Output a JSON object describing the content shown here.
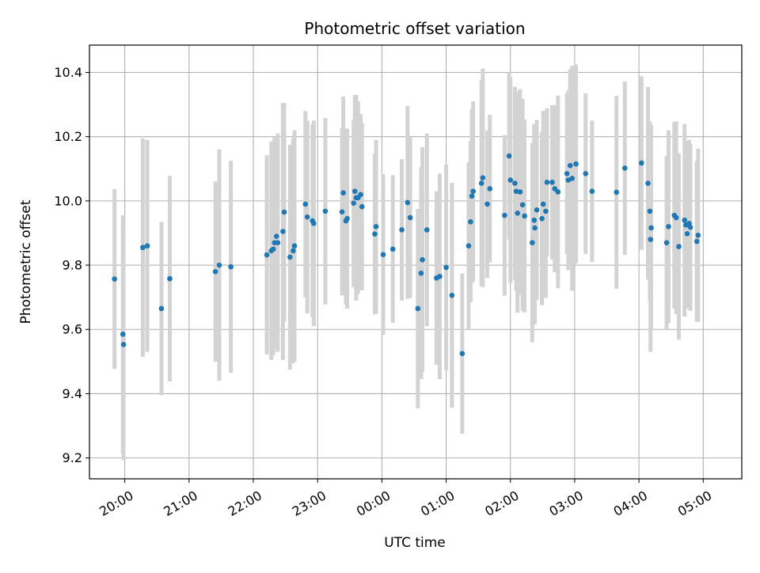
{
  "chart_data": {
    "type": "scatter",
    "title": "Photometric offset variation",
    "xlabel": "UTC time",
    "ylabel": "Photometric offset",
    "x_axis": "time (hours after 19:00 UTC)",
    "xlim": [
      0.45,
      10.6
    ],
    "ylim": [
      9.135,
      10.485
    ],
    "grid": true,
    "colors": {
      "point": "#1f77b4",
      "errorbar": "#d3d3d3",
      "grid": "#b0b0b0"
    },
    "x_ticks": [
      {
        "value": 1,
        "label": "20:00"
      },
      {
        "value": 2,
        "label": "21:00"
      },
      {
        "value": 3,
        "label": "22:00"
      },
      {
        "value": 4,
        "label": "23:00"
      },
      {
        "value": 5,
        "label": "00:00"
      },
      {
        "value": 6,
        "label": "01:00"
      },
      {
        "value": 7,
        "label": "02:00"
      },
      {
        "value": 8,
        "label": "03:00"
      },
      {
        "value": 9,
        "label": "04:00"
      },
      {
        "value": 10,
        "label": "05:00"
      }
    ],
    "y_ticks": [
      {
        "value": 9.2,
        "label": "9.2"
      },
      {
        "value": 9.4,
        "label": "9.4"
      },
      {
        "value": 9.6,
        "label": "9.6"
      },
      {
        "value": 9.8,
        "label": "9.8"
      },
      {
        "value": 10.0,
        "label": "10.0"
      },
      {
        "value": 10.2,
        "label": "10.2"
      },
      {
        "value": 10.4,
        "label": "10.4"
      }
    ],
    "points": [
      {
        "x": 0.84,
        "y": 9.757,
        "err": 0.28
      },
      {
        "x": 0.97,
        "y": 9.585,
        "err": 0.37
      },
      {
        "x": 0.98,
        "y": 9.553,
        "err": 0.36
      },
      {
        "x": 1.28,
        "y": 9.855,
        "err": 0.34
      },
      {
        "x": 1.35,
        "y": 9.86,
        "err": 0.33
      },
      {
        "x": 1.57,
        "y": 9.665,
        "err": 0.27
      },
      {
        "x": 1.7,
        "y": 9.758,
        "err": 0.32
      },
      {
        "x": 2.41,
        "y": 9.78,
        "err": 0.28
      },
      {
        "x": 2.47,
        "y": 9.8,
        "err": 0.36
      },
      {
        "x": 2.65,
        "y": 9.795,
        "err": 0.33
      },
      {
        "x": 3.21,
        "y": 9.832,
        "err": 0.31
      },
      {
        "x": 3.28,
        "y": 9.845,
        "err": 0.34
      },
      {
        "x": 3.31,
        "y": 9.85,
        "err": 0.33
      },
      {
        "x": 3.33,
        "y": 9.87,
        "err": 0.33
      },
      {
        "x": 3.36,
        "y": 9.89,
        "err": 0.3
      },
      {
        "x": 3.38,
        "y": 9.87,
        "err": 0.34
      },
      {
        "x": 3.46,
        "y": 9.905,
        "err": 0.4
      },
      {
        "x": 3.48,
        "y": 9.965,
        "err": 0.34
      },
      {
        "x": 3.57,
        "y": 9.825,
        "err": 0.35
      },
      {
        "x": 3.62,
        "y": 9.845,
        "err": 0.35
      },
      {
        "x": 3.64,
        "y": 9.86,
        "err": 0.36
      },
      {
        "x": 3.81,
        "y": 9.99,
        "err": 0.29
      },
      {
        "x": 3.84,
        "y": 9.95,
        "err": 0.3
      },
      {
        "x": 3.92,
        "y": 9.938,
        "err": 0.3
      },
      {
        "x": 3.94,
        "y": 9.93,
        "err": 0.32
      },
      {
        "x": 4.12,
        "y": 9.968,
        "err": 0.29
      },
      {
        "x": 4.38,
        "y": 9.966,
        "err": 0.26
      },
      {
        "x": 4.4,
        "y": 10.025,
        "err": 0.3
      },
      {
        "x": 4.44,
        "y": 9.938,
        "err": 0.26
      },
      {
        "x": 4.46,
        "y": 9.945,
        "err": 0.28
      },
      {
        "x": 4.56,
        "y": 9.993,
        "err": 0.26
      },
      {
        "x": 4.58,
        "y": 10.03,
        "err": 0.3
      },
      {
        "x": 4.6,
        "y": 10.01,
        "err": 0.32
      },
      {
        "x": 4.63,
        "y": 10.01,
        "err": 0.3
      },
      {
        "x": 4.67,
        "y": 10.02,
        "err": 0.25
      },
      {
        "x": 4.69,
        "y": 9.982,
        "err": 0.26
      },
      {
        "x": 4.89,
        "y": 9.897,
        "err": 0.25
      },
      {
        "x": 4.91,
        "y": 9.92,
        "err": 0.27
      },
      {
        "x": 5.02,
        "y": 9.833,
        "err": 0.25
      },
      {
        "x": 5.17,
        "y": 9.85,
        "err": 0.23
      },
      {
        "x": 5.31,
        "y": 9.91,
        "err": 0.22
      },
      {
        "x": 5.4,
        "y": 9.995,
        "err": 0.3
      },
      {
        "x": 5.44,
        "y": 9.948,
        "err": 0.25
      },
      {
        "x": 5.56,
        "y": 9.665,
        "err": 0.31
      },
      {
        "x": 5.61,
        "y": 9.775,
        "err": 0.33
      },
      {
        "x": 5.63,
        "y": 9.817,
        "err": 0.35
      },
      {
        "x": 5.7,
        "y": 9.91,
        "err": 0.3
      },
      {
        "x": 5.85,
        "y": 9.76,
        "err": 0.27
      },
      {
        "x": 5.9,
        "y": 9.765,
        "err": 0.32
      },
      {
        "x": 6.0,
        "y": 9.793,
        "err": 0.32
      },
      {
        "x": 6.09,
        "y": 9.706,
        "err": 0.35
      },
      {
        "x": 6.25,
        "y": 9.525,
        "err": 0.25
      },
      {
        "x": 6.35,
        "y": 9.86,
        "err": 0.26
      },
      {
        "x": 6.38,
        "y": 9.935,
        "err": 0.25
      },
      {
        "x": 6.4,
        "y": 10.015,
        "err": 0.27
      },
      {
        "x": 6.42,
        "y": 10.03,
        "err": 0.28
      },
      {
        "x": 6.55,
        "y": 10.055,
        "err": 0.32
      },
      {
        "x": 6.57,
        "y": 10.072,
        "err": 0.34
      },
      {
        "x": 6.64,
        "y": 9.99,
        "err": 0.23
      },
      {
        "x": 6.68,
        "y": 10.038,
        "err": 0.23
      },
      {
        "x": 6.91,
        "y": 9.955,
        "err": 0.25
      },
      {
        "x": 6.98,
        "y": 10.14,
        "err": 0.26
      },
      {
        "x": 7.0,
        "y": 10.065,
        "err": 0.32
      },
      {
        "x": 7.07,
        "y": 10.055,
        "err": 0.3
      },
      {
        "x": 7.09,
        "y": 10.03,
        "err": 0.31
      },
      {
        "x": 7.11,
        "y": 9.962,
        "err": 0.31
      },
      {
        "x": 7.15,
        "y": 10.028,
        "err": 0.32
      },
      {
        "x": 7.19,
        "y": 9.988,
        "err": 0.33
      },
      {
        "x": 7.22,
        "y": 9.953,
        "err": 0.3
      },
      {
        "x": 7.34,
        "y": 9.87,
        "err": 0.31
      },
      {
        "x": 7.37,
        "y": 9.94,
        "err": 0.3
      },
      {
        "x": 7.38,
        "y": 9.916,
        "err": 0.3
      },
      {
        "x": 7.41,
        "y": 9.972,
        "err": 0.28
      },
      {
        "x": 7.49,
        "y": 9.945,
        "err": 0.27
      },
      {
        "x": 7.51,
        "y": 9.99,
        "err": 0.29
      },
      {
        "x": 7.55,
        "y": 9.968,
        "err": 0.27
      },
      {
        "x": 7.57,
        "y": 10.058,
        "err": 0.23
      },
      {
        "x": 7.65,
        "y": 10.058,
        "err": 0.24
      },
      {
        "x": 7.69,
        "y": 10.038,
        "err": 0.26
      },
      {
        "x": 7.74,
        "y": 10.028,
        "err": 0.3
      },
      {
        "x": 7.88,
        "y": 10.085,
        "err": 0.25
      },
      {
        "x": 7.9,
        "y": 10.065,
        "err": 0.28
      },
      {
        "x": 7.93,
        "y": 10.11,
        "err": 0.3
      },
      {
        "x": 7.96,
        "y": 10.07,
        "err": 0.35
      },
      {
        "x": 8.02,
        "y": 10.115,
        "err": 0.31
      },
      {
        "x": 8.17,
        "y": 10.085,
        "err": 0.25
      },
      {
        "x": 8.27,
        "y": 10.03,
        "err": 0.22
      },
      {
        "x": 8.65,
        "y": 10.027,
        "err": 0.3
      },
      {
        "x": 8.78,
        "y": 10.102,
        "err": 0.27
      },
      {
        "x": 9.04,
        "y": 10.118,
        "err": 0.27
      },
      {
        "x": 9.14,
        "y": 10.055,
        "err": 0.3
      },
      {
        "x": 9.17,
        "y": 9.968,
        "err": 0.28
      },
      {
        "x": 9.18,
        "y": 9.88,
        "err": 0.35
      },
      {
        "x": 9.19,
        "y": 9.916,
        "err": 0.32
      },
      {
        "x": 9.43,
        "y": 9.87,
        "err": 0.27
      },
      {
        "x": 9.46,
        "y": 9.92,
        "err": 0.3
      },
      {
        "x": 9.55,
        "y": 9.955,
        "err": 0.29
      },
      {
        "x": 9.58,
        "y": 9.948,
        "err": 0.3
      },
      {
        "x": 9.62,
        "y": 9.858,
        "err": 0.29
      },
      {
        "x": 9.71,
        "y": 9.94,
        "err": 0.3
      },
      {
        "x": 9.73,
        "y": 9.925,
        "err": 0.26
      },
      {
        "x": 9.75,
        "y": 9.898,
        "err": 0.23
      },
      {
        "x": 9.78,
        "y": 9.93,
        "err": 0.26
      },
      {
        "x": 9.8,
        "y": 9.918,
        "err": 0.26
      },
      {
        "x": 9.9,
        "y": 9.874,
        "err": 0.25
      },
      {
        "x": 9.92,
        "y": 9.893,
        "err": 0.27
      }
    ]
  }
}
